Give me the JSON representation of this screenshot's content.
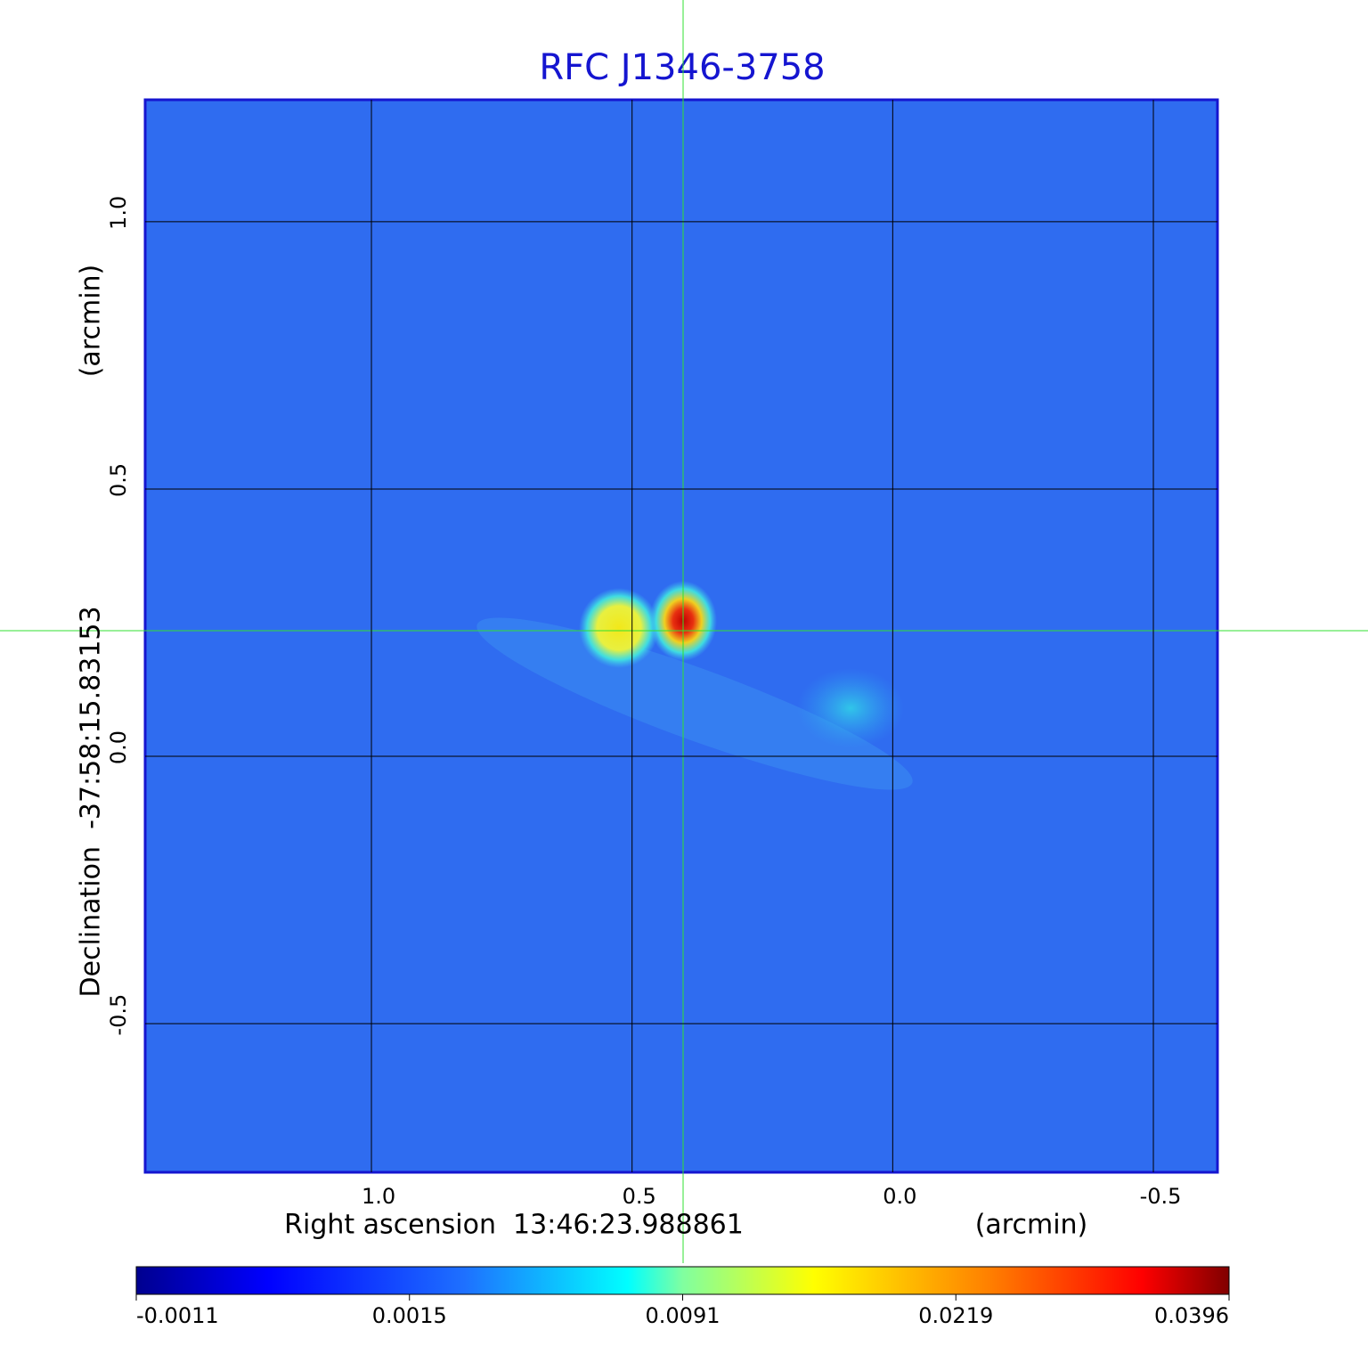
{
  "chart_data": {
    "type": "image",
    "title": "RFC J1346-3758",
    "x_label": "Right ascension  13:46:23.988861",
    "x_unit": "(arcmin)",
    "y_label": "Declination  -37:58:15.83153",
    "y_unit": "(arcmin)",
    "xlim": [
      1.434,
      -0.623
    ],
    "ylim": [
      -0.778,
      1.228
    ],
    "xticks": [
      {
        "value": 1,
        "label": "1.0"
      },
      0.5,
      {
        "value": 0,
        "label": "0.0"
      },
      -0.5
    ],
    "yticks": [
      {
        "value": 1,
        "label": "1.0"
      },
      0.5,
      {
        "value": 0,
        "label": "0.0"
      },
      -0.5
    ],
    "grid": true,
    "colorbar": {
      "colormap": "jet",
      "ticks": [
        -0.0011,
        0.0015,
        0.0091,
        0.0219,
        0.0396
      ]
    }
  }
}
